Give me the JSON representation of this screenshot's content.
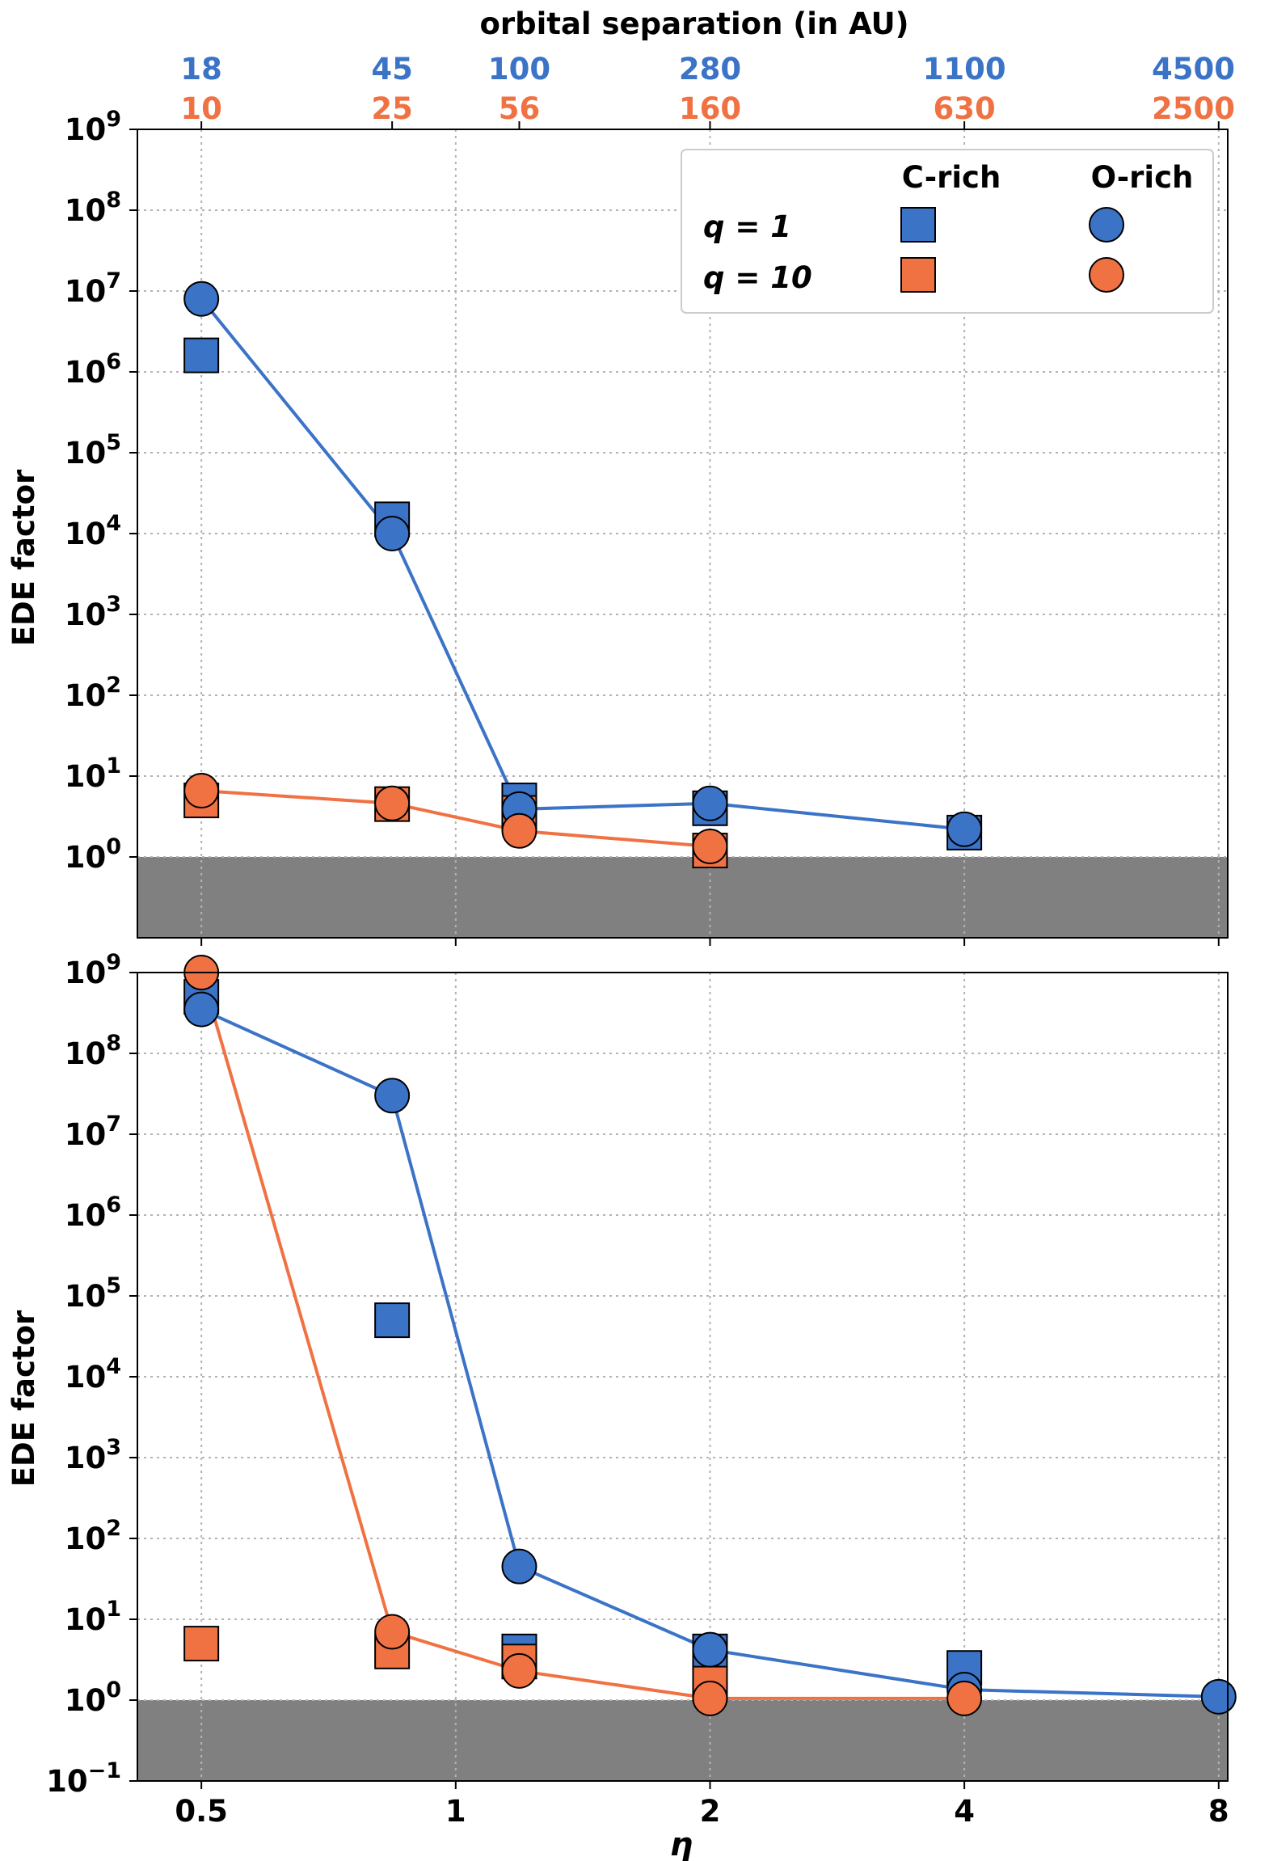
{
  "colors": {
    "blue": "#3b73c7",
    "orange": "#f07243",
    "shade": "#808080",
    "grid": "#b3b3b3"
  },
  "top_axis": {
    "title": "orbital separation (in AU)",
    "eta_ticks": [
      0.5,
      0.8409,
      1.1892,
      2,
      4,
      8
    ],
    "q1_labels": [
      "18",
      "45",
      "100",
      "280",
      "1100",
      "4500"
    ],
    "q10_labels": [
      "10",
      "25",
      "56",
      "160",
      "630",
      "2500"
    ]
  },
  "x_axis": {
    "label": "η",
    "ticks": [
      0.5,
      1,
      2,
      4,
      8
    ],
    "tick_labels": [
      "0.5",
      "1",
      "2",
      "4",
      "8"
    ],
    "range": [
      0.42,
      8.2
    ],
    "scale": "log2"
  },
  "legend": {
    "col_headers": [
      "C-rich",
      "O-rich"
    ],
    "rows": [
      "q = 1",
      "q = 10"
    ]
  },
  "chart_data": [
    {
      "type": "scatter",
      "panel": "top",
      "ylabel": "EDE factor",
      "yscale": "log",
      "ylim": [
        0.1,
        1000000000
      ],
      "y_ticks": [
        1,
        10,
        100,
        1000,
        10000,
        100000,
        1000000,
        10000000,
        100000000,
        1000000000
      ],
      "y_tick_exponents": [
        "0",
        "1",
        "2",
        "3",
        "4",
        "5",
        "6",
        "7",
        "8",
        "9"
      ],
      "shaded_below": 1,
      "grid": true,
      "series": [
        {
          "name": "q = 1 C-rich",
          "marker": "square",
          "color": "blue",
          "x": [
            0.5,
            0.8409,
            1.1892,
            2,
            4
          ],
          "y": [
            1600000,
            15000,
            5,
            4,
            2
          ]
        },
        {
          "name": "q = 1 O-rich",
          "marker": "circle",
          "color": "blue",
          "line": true,
          "x": [
            0.5,
            0.8409,
            1.1892,
            2,
            4
          ],
          "y": [
            8000000,
            10000,
            3.9,
            4.6,
            2.2
          ]
        },
        {
          "name": "q = 10 C-rich",
          "marker": "square",
          "color": "orange",
          "x": [
            0.5,
            0.8409,
            1.1892,
            2
          ],
          "y": [
            5,
            4.5,
            3.5,
            1.2
          ]
        },
        {
          "name": "q = 10 O-rich",
          "marker": "circle",
          "color": "orange",
          "line": true,
          "x": [
            0.5,
            0.8409,
            1.1892,
            2
          ],
          "y": [
            6.6,
            4.6,
            2.1,
            1.35
          ]
        }
      ]
    },
    {
      "type": "scatter",
      "panel": "bottom",
      "ylabel": "EDE factor",
      "xlabel": "η",
      "yscale": "log",
      "ylim": [
        0.1,
        1000000000
      ],
      "y_ticks": [
        0.1,
        1,
        10,
        100,
        1000,
        10000,
        100000,
        1000000,
        10000000,
        100000000,
        1000000000
      ],
      "y_tick_exponents": [
        "−1",
        "0",
        "1",
        "2",
        "3",
        "4",
        "5",
        "6",
        "7",
        "8",
        "9"
      ],
      "shaded_below": 1,
      "grid": true,
      "series": [
        {
          "name": "q = 1 C-rich",
          "marker": "square",
          "color": "blue",
          "x": [
            0.5,
            0.8409,
            1.1892,
            2,
            4
          ],
          "y": [
            500000000,
            50000,
            4,
            4,
            2.5
          ]
        },
        {
          "name": "q = 1 O-rich",
          "marker": "circle",
          "color": "blue",
          "line": true,
          "x": [
            0.5,
            0.8409,
            1.1892,
            2,
            4,
            8
          ],
          "y": [
            350000000,
            30000000,
            45,
            4.2,
            1.35,
            1.1
          ]
        },
        {
          "name": "q = 10 C-rich",
          "marker": "square",
          "color": "orange",
          "x": [
            0.5,
            0.8409,
            1.1892,
            2
          ],
          "y": [
            5,
            4,
            3,
            1.6
          ]
        },
        {
          "name": "q = 10 O-rich",
          "marker": "circle",
          "color": "orange",
          "line": true,
          "x": [
            0.5,
            0.8409,
            1.1892,
            2,
            4
          ],
          "y": [
            1000000000,
            7,
            2.3,
            1.05,
            1.05
          ]
        }
      ]
    }
  ]
}
